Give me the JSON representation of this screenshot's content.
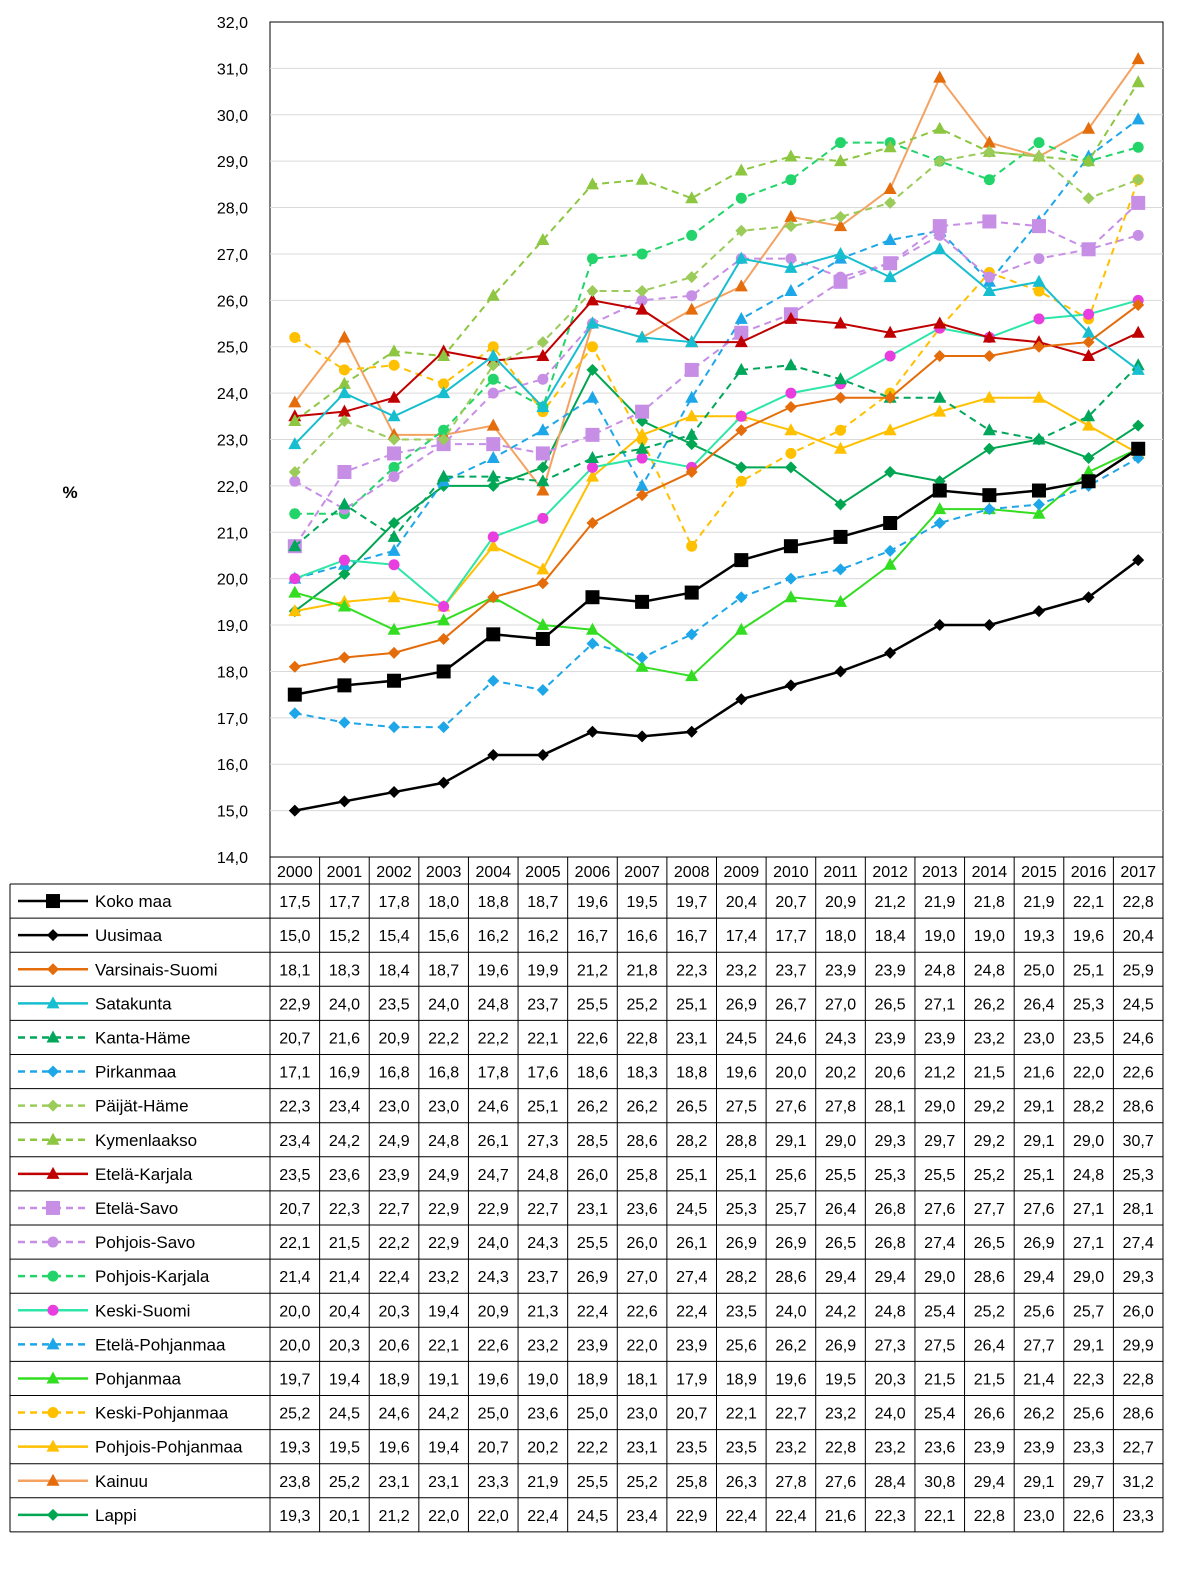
{
  "chart_data": {
    "type": "line",
    "ylabel": "%",
    "ylim": [
      14,
      32
    ],
    "y_step": 1,
    "grid": true,
    "legend": "data-table-below",
    "categories": [
      "2000",
      "2001",
      "2002",
      "2003",
      "2004",
      "2005",
      "2006",
      "2007",
      "2008",
      "2009",
      "2010",
      "2011",
      "2012",
      "2013",
      "2014",
      "2015",
      "2016",
      "2017"
    ],
    "ytick_labels": [
      "14,0",
      "15,0",
      "16,0",
      "17,0",
      "18,0",
      "19,0",
      "20,0",
      "21,0",
      "22,0",
      "23,0",
      "24,0",
      "25,0",
      "26,0",
      "27,0",
      "28,0",
      "29,0",
      "30,0",
      "31,0",
      "32,0"
    ],
    "series": [
      {
        "name": "Koko maa",
        "color": "#000000",
        "dash": false,
        "marker": "square",
        "values": [
          17.5,
          17.7,
          17.8,
          18.0,
          18.8,
          18.7,
          19.6,
          19.5,
          19.7,
          20.4,
          20.7,
          20.9,
          21.2,
          21.9,
          21.8,
          21.9,
          22.1,
          22.8
        ],
        "labels": [
          "17,5",
          "17,7",
          "17,8",
          "18,0",
          "18,8",
          "18,7",
          "19,6",
          "19,5",
          "19,7",
          "20,4",
          "20,7",
          "20,9",
          "21,2",
          "21,9",
          "21,8",
          "21,9",
          "22,1",
          "22,8"
        ]
      },
      {
        "name": "Uusimaa",
        "color": "#000000",
        "dash": false,
        "marker": "diamond",
        "values": [
          15.0,
          15.2,
          15.4,
          15.6,
          16.2,
          16.2,
          16.7,
          16.6,
          16.7,
          17.4,
          17.7,
          18.0,
          18.4,
          19.0,
          19.0,
          19.3,
          19.6,
          20.4
        ],
        "labels": [
          "15,0",
          "15,2",
          "15,4",
          "15,6",
          "16,2",
          "16,2",
          "16,7",
          "16,6",
          "16,7",
          "17,4",
          "17,7",
          "18,0",
          "18,4",
          "19,0",
          "19,0",
          "19,3",
          "19,6",
          "20,4"
        ]
      },
      {
        "name": "Varsinais-Suomi",
        "color": "#e46c0a",
        "dash": false,
        "marker": "diamond",
        "values": [
          18.1,
          18.3,
          18.4,
          18.7,
          19.6,
          19.9,
          21.2,
          21.8,
          22.3,
          23.2,
          23.7,
          23.9,
          23.9,
          24.8,
          24.8,
          25.0,
          25.1,
          25.9
        ],
        "labels": [
          "18,1",
          "18,3",
          "18,4",
          "18,7",
          "19,6",
          "19,9",
          "21,2",
          "21,8",
          "22,3",
          "23,2",
          "23,7",
          "23,9",
          "23,9",
          "24,8",
          "24,8",
          "25,0",
          "25,1",
          "25,9"
        ]
      },
      {
        "name": "Satakunta",
        "color": "#17becf",
        "dash": false,
        "marker": "triangle",
        "values": [
          22.9,
          24.0,
          23.5,
          24.0,
          24.8,
          23.7,
          25.5,
          25.2,
          25.1,
          26.9,
          26.7,
          27.0,
          26.5,
          27.1,
          26.2,
          26.4,
          25.3,
          24.5
        ],
        "labels": [
          "22,9",
          "24,0",
          "23,5",
          "24,0",
          "24,8",
          "23,7",
          "25,5",
          "25,2",
          "25,1",
          "26,9",
          "26,7",
          "27,0",
          "26,5",
          "27,1",
          "26,2",
          "26,4",
          "25,3",
          "24,5"
        ]
      },
      {
        "name": "Kanta-Häme",
        "color": "#00a65a",
        "dash": true,
        "marker": "triangle",
        "values": [
          20.7,
          21.6,
          20.9,
          22.2,
          22.2,
          22.1,
          22.6,
          22.8,
          23.1,
          24.5,
          24.6,
          24.3,
          23.9,
          23.9,
          23.2,
          23.0,
          23.5,
          24.6
        ],
        "labels": [
          "20,7",
          "21,6",
          "20,9",
          "22,2",
          "22,2",
          "22,1",
          "22,6",
          "22,8",
          "23,1",
          "24,5",
          "24,6",
          "24,3",
          "23,9",
          "23,9",
          "23,2",
          "23,0",
          "23,5",
          "24,6"
        ]
      },
      {
        "name": "Pirkanmaa",
        "color": "#1ea7e8",
        "dash": true,
        "marker": "diamond",
        "values": [
          17.1,
          16.9,
          16.8,
          16.8,
          17.8,
          17.6,
          18.6,
          18.3,
          18.8,
          19.6,
          20.0,
          20.2,
          20.6,
          21.2,
          21.5,
          21.6,
          22.0,
          22.6
        ],
        "labels": [
          "17,1",
          "16,9",
          "16,8",
          "16,8",
          "17,8",
          "17,6",
          "18,6",
          "18,3",
          "18,8",
          "19,6",
          "20,0",
          "20,2",
          "20,6",
          "21,2",
          "21,5",
          "21,6",
          "22,0",
          "22,6"
        ]
      },
      {
        "name": "Päijät-Häme",
        "color": "#9bcc5a",
        "dash": true,
        "marker": "diamond",
        "values": [
          22.3,
          23.4,
          23.0,
          23.0,
          24.6,
          25.1,
          26.2,
          26.2,
          26.5,
          27.5,
          27.6,
          27.8,
          28.1,
          29.0,
          29.2,
          29.1,
          28.2,
          28.6
        ],
        "labels": [
          "22,3",
          "23,4",
          "23,0",
          "23,0",
          "24,6",
          "25,1",
          "26,2",
          "26,2",
          "26,5",
          "27,5",
          "27,6",
          "27,8",
          "28,1",
          "29,0",
          "29,2",
          "29,1",
          "28,2",
          "28,6"
        ]
      },
      {
        "name": "Kymenlaakso",
        "color": "#8dc641",
        "dash": true,
        "marker": "triangle",
        "values": [
          23.4,
          24.2,
          24.9,
          24.8,
          26.1,
          27.3,
          28.5,
          28.6,
          28.2,
          28.8,
          29.1,
          29.0,
          29.3,
          29.7,
          29.2,
          29.1,
          29.0,
          30.7
        ],
        "labels": [
          "23,4",
          "24,2",
          "24,9",
          "24,8",
          "26,1",
          "27,3",
          "28,5",
          "28,6",
          "28,2",
          "28,8",
          "29,1",
          "29,0",
          "29,3",
          "29,7",
          "29,2",
          "29,1",
          "29,0",
          "30,7"
        ]
      },
      {
        "name": "Etelä-Karjala",
        "color": "#c00000",
        "dash": false,
        "marker": "triangle",
        "values": [
          23.5,
          23.6,
          23.9,
          24.9,
          24.7,
          24.8,
          26.0,
          25.8,
          25.1,
          25.1,
          25.6,
          25.5,
          25.3,
          25.5,
          25.2,
          25.1,
          24.8,
          25.3
        ],
        "labels": [
          "23,5",
          "23,6",
          "23,9",
          "24,9",
          "24,7",
          "24,8",
          "26,0",
          "25,8",
          "25,1",
          "25,1",
          "25,6",
          "25,5",
          "25,3",
          "25,5",
          "25,2",
          "25,1",
          "24,8",
          "25,3"
        ]
      },
      {
        "name": "Etelä-Savo",
        "color": "#c78ee6",
        "dash": true,
        "marker": "square",
        "values": [
          20.7,
          22.3,
          22.7,
          22.9,
          22.9,
          22.7,
          23.1,
          23.6,
          24.5,
          25.3,
          25.7,
          26.4,
          26.8,
          27.6,
          27.7,
          27.6,
          27.1,
          28.1
        ],
        "labels": [
          "20,7",
          "22,3",
          "22,7",
          "22,9",
          "22,9",
          "22,7",
          "23,1",
          "23,6",
          "24,5",
          "25,3",
          "25,7",
          "26,4",
          "26,8",
          "27,6",
          "27,7",
          "27,6",
          "27,1",
          "28,1"
        ]
      },
      {
        "name": "Pohjois-Savo",
        "color": "#c78ee6",
        "dash": true,
        "marker": "circle",
        "values": [
          22.1,
          21.5,
          22.2,
          22.9,
          24.0,
          24.3,
          25.5,
          26.0,
          26.1,
          26.9,
          26.9,
          26.5,
          26.8,
          27.4,
          26.5,
          26.9,
          27.1,
          27.4
        ],
        "labels": [
          "22,1",
          "21,5",
          "22,2",
          "22,9",
          "24,0",
          "24,3",
          "25,5",
          "26,0",
          "26,1",
          "26,9",
          "26,9",
          "26,5",
          "26,8",
          "27,4",
          "26,5",
          "26,9",
          "27,1",
          "27,4"
        ]
      },
      {
        "name": "Pohjois-Karjala",
        "color": "#22d46a",
        "dash": true,
        "marker": "circle",
        "values": [
          21.4,
          21.4,
          22.4,
          23.2,
          24.3,
          23.7,
          26.9,
          27.0,
          27.4,
          28.2,
          28.6,
          29.4,
          29.4,
          29.0,
          28.6,
          29.4,
          29.0,
          29.3
        ],
        "labels": [
          "21,4",
          "21,4",
          "22,4",
          "23,2",
          "24,3",
          "23,7",
          "26,9",
          "27,0",
          "27,4",
          "28,2",
          "28,6",
          "29,4",
          "29,4",
          "29,0",
          "28,6",
          "29,4",
          "29,0",
          "29,3"
        ]
      },
      {
        "name": "Keski-Suomi",
        "color": "#e83ee0",
        "dash": false,
        "marker": "circle",
        "line_color": "#2ee6a6",
        "values": [
          20.0,
          20.4,
          20.3,
          19.4,
          20.9,
          21.3,
          22.4,
          22.6,
          22.4,
          23.5,
          24.0,
          24.2,
          24.8,
          25.4,
          25.2,
          25.6,
          25.7,
          26.0
        ],
        "labels": [
          "20,0",
          "20,4",
          "20,3",
          "19,4",
          "20,9",
          "21,3",
          "22,4",
          "22,6",
          "22,4",
          "23,5",
          "24,0",
          "24,2",
          "24,8",
          "25,4",
          "25,2",
          "25,6",
          "25,7",
          "26,0"
        ]
      },
      {
        "name": "Etelä-Pohjanmaa",
        "color": "#1ea7e8",
        "dash": true,
        "marker": "triangle",
        "values": [
          20.0,
          20.3,
          20.6,
          22.1,
          22.6,
          23.2,
          23.9,
          22.0,
          23.9,
          25.6,
          26.2,
          26.9,
          27.3,
          27.5,
          26.4,
          27.7,
          29.1,
          29.9
        ],
        "labels": [
          "20,0",
          "20,3",
          "20,6",
          "22,1",
          "22,6",
          "23,2",
          "23,9",
          "22,0",
          "23,9",
          "25,6",
          "26,2",
          "26,9",
          "27,3",
          "27,5",
          "26,4",
          "27,7",
          "29,1",
          "29,9"
        ]
      },
      {
        "name": "Pohjanmaa",
        "color": "#33dd22",
        "dash": false,
        "marker": "triangle",
        "values": [
          19.7,
          19.4,
          18.9,
          19.1,
          19.6,
          19.0,
          18.9,
          18.1,
          17.9,
          18.9,
          19.6,
          19.5,
          20.3,
          21.5,
          21.5,
          21.4,
          22.3,
          22.8
        ],
        "labels": [
          "19,7",
          "19,4",
          "18,9",
          "19,1",
          "19,6",
          "19,0",
          "18,9",
          "18,1",
          "17,9",
          "18,9",
          "19,6",
          "19,5",
          "20,3",
          "21,5",
          "21,5",
          "21,4",
          "22,3",
          "22,8"
        ]
      },
      {
        "name": "Keski-Pohjanmaa",
        "color": "#ffc000",
        "dash": true,
        "marker": "circle",
        "values": [
          25.2,
          24.5,
          24.6,
          24.2,
          25.0,
          23.6,
          25.0,
          23.0,
          20.7,
          22.1,
          22.7,
          23.2,
          24.0,
          25.4,
          26.6,
          26.2,
          25.6,
          28.6
        ],
        "labels": [
          "25,2",
          "24,5",
          "24,6",
          "24,2",
          "25,0",
          "23,6",
          "25,0",
          "23,0",
          "20,7",
          "22,1",
          "22,7",
          "23,2",
          "24,0",
          "25,4",
          "26,6",
          "26,2",
          "25,6",
          "28,6"
        ]
      },
      {
        "name": "Pohjois-Pohjanmaa",
        "color": "#ffc000",
        "dash": false,
        "marker": "triangle",
        "values": [
          19.3,
          19.5,
          19.6,
          19.4,
          20.7,
          20.2,
          22.2,
          23.1,
          23.5,
          23.5,
          23.2,
          22.8,
          23.2,
          23.6,
          23.9,
          23.9,
          23.3,
          22.7
        ],
        "labels": [
          "19,3",
          "19,5",
          "19,6",
          "19,4",
          "20,7",
          "20,2",
          "22,2",
          "23,1",
          "23,5",
          "23,5",
          "23,2",
          "22,8",
          "23,2",
          "23,6",
          "23,9",
          "23,9",
          "23,3",
          "22,7"
        ]
      },
      {
        "name": "Kainuu",
        "color": "#e46c0a",
        "dash": false,
        "marker": "triangle",
        "line_color": "#f4a261",
        "values": [
          23.8,
          25.2,
          23.1,
          23.1,
          23.3,
          21.9,
          25.5,
          25.2,
          25.8,
          26.3,
          27.8,
          27.6,
          28.4,
          30.8,
          29.4,
          29.1,
          29.7,
          31.2
        ],
        "labels": [
          "23,8",
          "25,2",
          "23,1",
          "23,1",
          "23,3",
          "21,9",
          "25,5",
          "25,2",
          "25,8",
          "26,3",
          "27,8",
          "27,6",
          "28,4",
          "30,8",
          "29,4",
          "29,1",
          "29,7",
          "31,2"
        ]
      },
      {
        "name": "Lappi",
        "color": "#00a651",
        "dash": false,
        "marker": "diamond",
        "values": [
          19.3,
          20.1,
          21.2,
          22.0,
          22.0,
          22.4,
          24.5,
          23.4,
          22.9,
          22.4,
          22.4,
          21.6,
          22.3,
          22.1,
          22.8,
          23.0,
          22.6,
          23.3
        ],
        "labels": [
          "19,3",
          "20,1",
          "21,2",
          "22,0",
          "22,0",
          "22,4",
          "24,5",
          "23,4",
          "22,9",
          "22,4",
          "22,4",
          "21,6",
          "22,3",
          "22,1",
          "22,8",
          "23,0",
          "22,6",
          "23,3"
        ]
      }
    ]
  }
}
